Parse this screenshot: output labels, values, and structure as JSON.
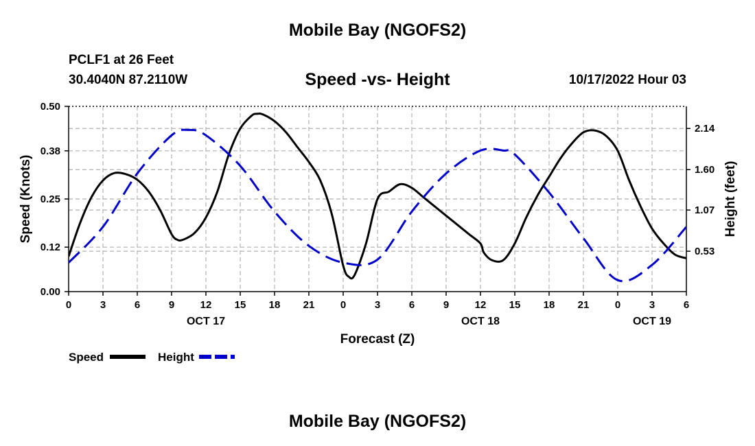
{
  "header": {
    "title": "Mobile Bay (NGOFS2)",
    "station": "PCLF1 at 26 Feet",
    "coords": "30.4040N  87.2110W",
    "subtitle": "Speed -vs- Height",
    "timestamp": "10/17/2022 Hour 03"
  },
  "footer": {
    "title": "Mobile Bay (NGOFS2)"
  },
  "colors": {
    "speed": "#000000",
    "height": "#0000cc",
    "grid": "#b0b0b0"
  },
  "chart_data": {
    "type": "line",
    "title": "Speed -vs- Height",
    "xlabel": "Forecast (Z)",
    "ylabel": "Speed (Knots)",
    "y2label": "Height (feet)",
    "xlim": [
      0,
      54
    ],
    "ylim": [
      0,
      0.5
    ],
    "y2lim": [
      0,
      2.43
    ],
    "x_ticks": [
      0,
      3,
      6,
      9,
      12,
      15,
      18,
      21,
      24,
      27,
      30,
      33,
      36,
      39,
      42,
      45,
      48,
      51,
      54
    ],
    "x_tick_labels": [
      "0",
      "3",
      "6",
      "9",
      "12",
      "15",
      "18",
      "21",
      "0",
      "3",
      "6",
      "9",
      "12",
      "15",
      "18",
      "21",
      "0",
      "3",
      "6"
    ],
    "day_labels": [
      {
        "x": 12,
        "label": "OCT 17"
      },
      {
        "x": 36,
        "label": "OCT 18"
      },
      {
        "x": 51,
        "label": "OCT 19"
      }
    ],
    "y_ticks": [
      0.0,
      0.12,
      0.25,
      0.38,
      0.5
    ],
    "y_tick_labels": [
      "0.00",
      "0.12",
      "0.25",
      "0.38",
      "0.50"
    ],
    "y2_ticks": [
      0.53,
      1.07,
      1.6,
      2.14
    ],
    "y2_tick_labels": [
      "0.53",
      "1.07",
      "1.60",
      "2.14"
    ],
    "grid": true,
    "legend_position": "bottom-left",
    "series": [
      {
        "name": "Speed",
        "axis": "left",
        "style": "solid",
        "x": [
          0,
          1,
          2,
          3,
          4,
          5,
          6,
          7,
          8,
          9,
          9.5,
          10,
          11,
          12,
          13,
          14,
          15,
          16,
          16.5,
          17,
          18,
          19,
          20,
          21,
          22,
          23,
          24,
          24.5,
          25,
          26,
          27,
          28,
          29,
          30,
          31,
          32,
          33,
          34,
          35,
          36,
          36.3,
          37,
          38,
          39,
          40,
          41,
          42,
          43,
          44,
          45,
          46,
          47,
          48,
          49,
          50,
          51,
          52,
          53,
          54
        ],
        "y": [
          0.095,
          0.185,
          0.255,
          0.3,
          0.32,
          0.317,
          0.302,
          0.27,
          0.22,
          0.155,
          0.14,
          0.14,
          0.158,
          0.2,
          0.27,
          0.37,
          0.44,
          0.475,
          0.48,
          0.478,
          0.46,
          0.43,
          0.39,
          0.35,
          0.3,
          0.21,
          0.07,
          0.04,
          0.045,
          0.13,
          0.25,
          0.27,
          0.29,
          0.28,
          0.255,
          0.23,
          0.205,
          0.18,
          0.155,
          0.13,
          0.105,
          0.085,
          0.085,
          0.13,
          0.2,
          0.26,
          0.31,
          0.36,
          0.4,
          0.43,
          0.435,
          0.42,
          0.38,
          0.3,
          0.23,
          0.17,
          0.13,
          0.1,
          0.09
        ]
      },
      {
        "name": "Height",
        "axis": "right",
        "style": "dashed",
        "x": [
          0,
          3,
          6,
          9,
          10.5,
          12,
          15,
          18,
          21,
          24,
          27,
          30,
          33,
          36,
          38,
          39,
          42,
          45,
          48,
          51,
          54
        ],
        "y": [
          0.38,
          0.85,
          1.55,
          2.05,
          2.12,
          2.05,
          1.65,
          1.05,
          0.6,
          0.38,
          0.42,
          1.05,
          1.55,
          1.85,
          1.85,
          1.8,
          1.3,
          0.7,
          0.15,
          0.35,
          0.85
        ]
      }
    ]
  }
}
